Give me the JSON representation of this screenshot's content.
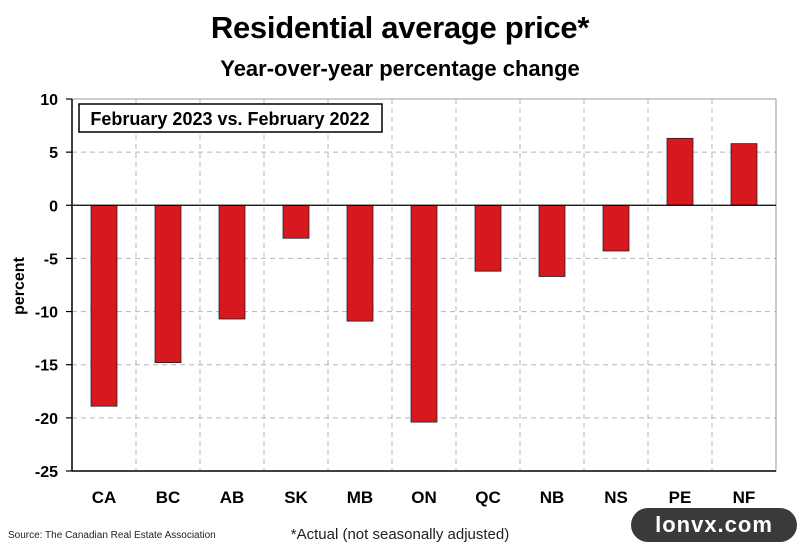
{
  "title": "Residential average price*",
  "subtitle": "Year-over-year percentage change",
  "source": "Source: The Canadian Real Estate Association",
  "footnote": "*Actual (not seasonally adjusted)",
  "watermark": "lonvx.com",
  "colors": {
    "bar": "#d7191f",
    "bar_edge": "#222222",
    "grid": "#b5b5b5",
    "axis": "#000000"
  },
  "chart_data": {
    "type": "bar",
    "title": "Residential average price*",
    "subtitle": "Year-over-year percentage change",
    "annotation": "February 2023 vs. February 2022",
    "ylabel": "percent",
    "xlabel": "",
    "categories": [
      "CA",
      "BC",
      "AB",
      "SK",
      "MB",
      "ON",
      "QC",
      "NB",
      "NS",
      "PE",
      "NF"
    ],
    "values": [
      -18.9,
      -14.8,
      -10.7,
      -3.1,
      -10.9,
      -20.4,
      -6.2,
      -6.7,
      -4.3,
      6.3,
      5.8
    ],
    "ylim": [
      -25,
      10
    ],
    "yticks": [
      10,
      5,
      0,
      -5,
      -10,
      -15,
      -20,
      -25
    ],
    "grid": true,
    "legend": "none"
  }
}
